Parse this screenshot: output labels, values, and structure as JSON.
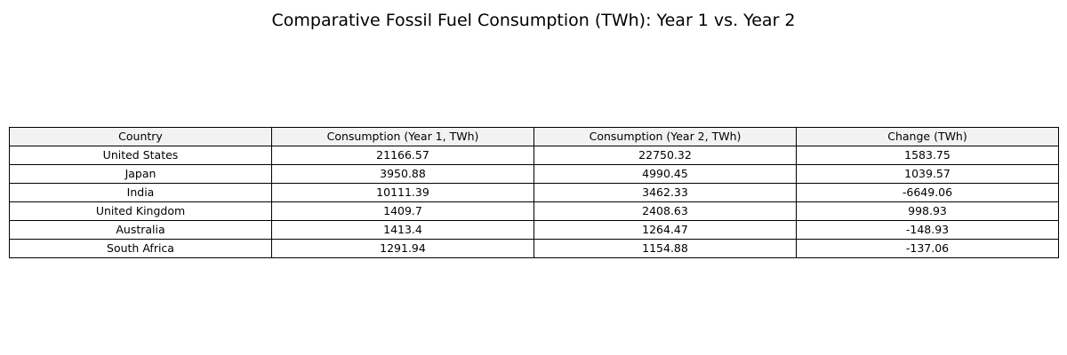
{
  "chart_data": {
    "type": "table",
    "title": "Comparative Fossil Fuel Consumption (TWh): Year 1 vs. Year 2",
    "columns": [
      "Country",
      "Consumption (Year 1, TWh)",
      "Consumption (Year 2, TWh)",
      "Change (TWh)"
    ],
    "rows": [
      [
        "United States",
        "21166.57",
        "22750.32",
        "1583.75"
      ],
      [
        "Japan",
        "3950.88",
        "4990.45",
        "1039.57"
      ],
      [
        "India",
        "10111.39",
        "3462.33",
        "-6649.06"
      ],
      [
        "United Kingdom",
        "1409.7",
        "2408.63",
        "998.93"
      ],
      [
        "Australia",
        "1413.4",
        "1264.47",
        "-148.93"
      ],
      [
        "South Africa",
        "1291.94",
        "1154.88",
        "-137.06"
      ]
    ],
    "header_background": "#f2f2f2",
    "border_color": "#000000"
  }
}
